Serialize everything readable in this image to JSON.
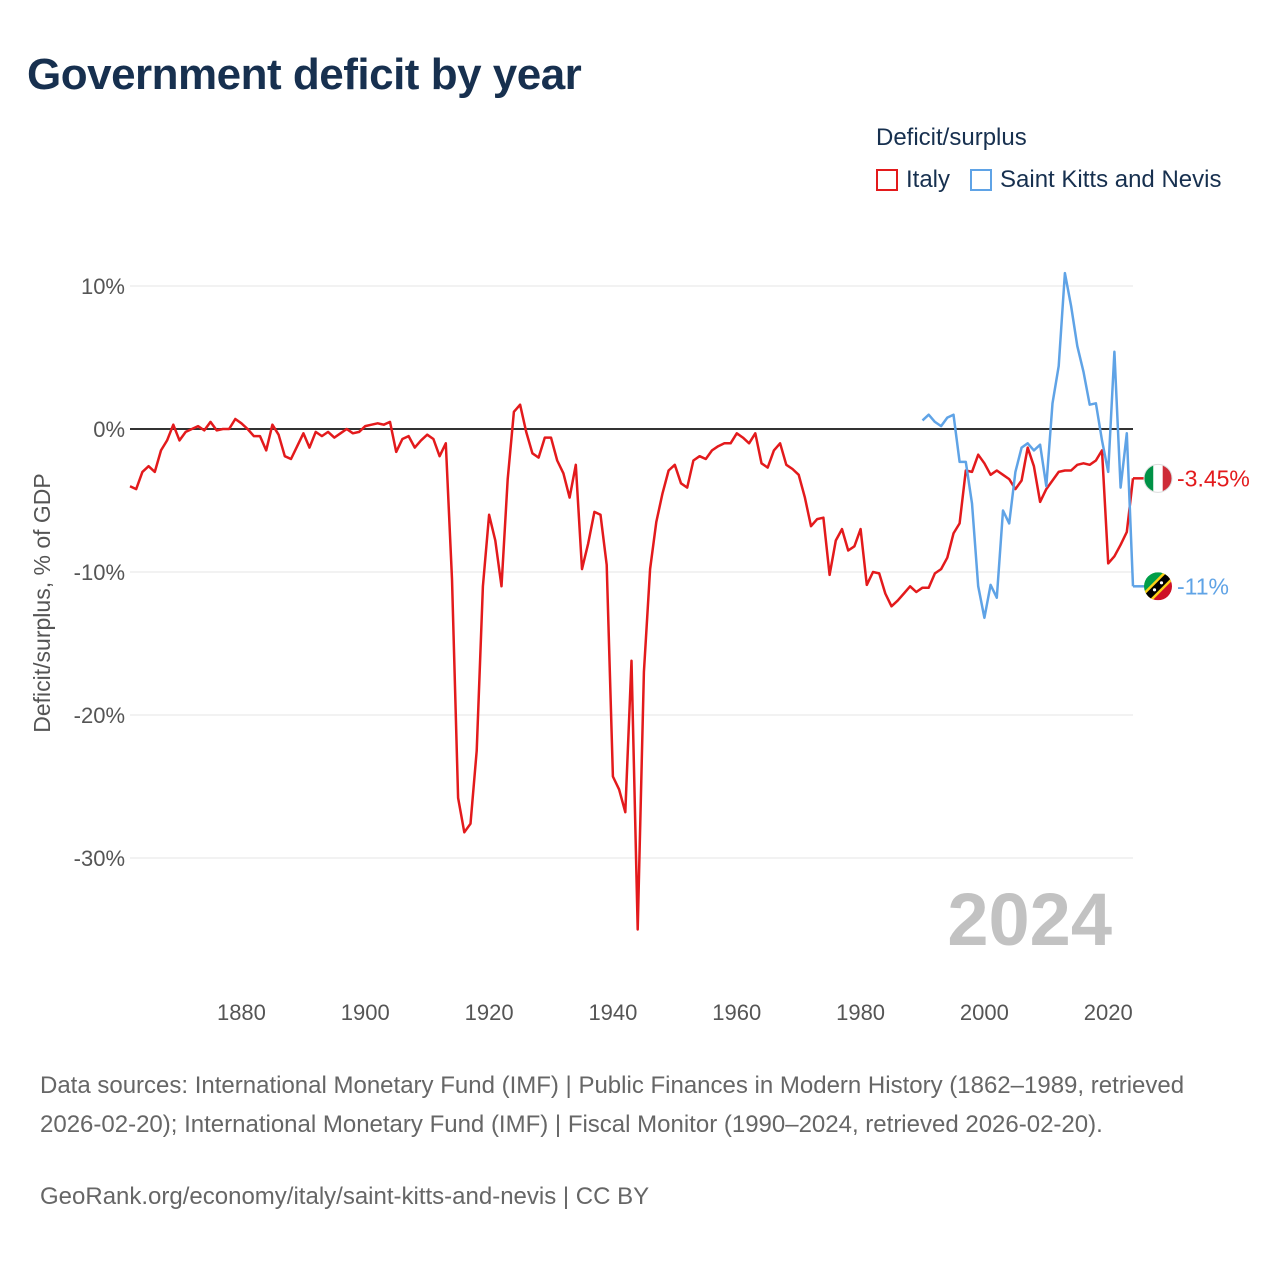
{
  "chart_data": {
    "type": "line",
    "title": "Government deficit by year",
    "ylabel": "Deficit/surplus, % of GDP",
    "xlabel": "",
    "xlim": [
      1862,
      2024
    ],
    "ylim": [
      -36,
      11.5
    ],
    "yticks": [
      10,
      0,
      -10,
      -20,
      -30
    ],
    "ytick_labels": [
      "10%",
      "0%",
      "-10%",
      "-20%",
      "-30%"
    ],
    "xticks": [
      1880,
      1900,
      1920,
      1940,
      1960,
      1980,
      2000,
      2020
    ],
    "xtick_labels": [
      "1880",
      "1900",
      "1920",
      "1940",
      "1960",
      "1980",
      "2000",
      "2020"
    ],
    "legend_title": "Deficit/surplus",
    "legend_position": "top-right",
    "year_display": "2024",
    "series": [
      {
        "name": "Italy",
        "color": "#e31a1c",
        "end_label": "-3.45%",
        "x": [
          1862,
          1863,
          1864,
          1865,
          1866,
          1867,
          1868,
          1869,
          1870,
          1871,
          1872,
          1873,
          1874,
          1875,
          1876,
          1877,
          1878,
          1879,
          1880,
          1881,
          1882,
          1883,
          1884,
          1885,
          1886,
          1887,
          1888,
          1889,
          1890,
          1891,
          1892,
          1893,
          1894,
          1895,
          1896,
          1897,
          1898,
          1899,
          1900,
          1901,
          1902,
          1903,
          1904,
          1905,
          1906,
          1907,
          1908,
          1909,
          1910,
          1911,
          1912,
          1913,
          1914,
          1915,
          1916,
          1917,
          1918,
          1919,
          1920,
          1921,
          1922,
          1923,
          1924,
          1925,
          1926,
          1927,
          1928,
          1929,
          1930,
          1931,
          1932,
          1933,
          1934,
          1935,
          1936,
          1937,
          1938,
          1939,
          1940,
          1941,
          1942,
          1943,
          1944,
          1945,
          1946,
          1947,
          1948,
          1949,
          1950,
          1951,
          1952,
          1953,
          1954,
          1955,
          1956,
          1957,
          1958,
          1959,
          1960,
          1961,
          1962,
          1963,
          1964,
          1965,
          1966,
          1967,
          1968,
          1969,
          1970,
          1971,
          1972,
          1973,
          1974,
          1975,
          1976,
          1977,
          1978,
          1979,
          1980,
          1981,
          1982,
          1983,
          1984,
          1985,
          1986,
          1987,
          1988,
          1989,
          1990,
          1991,
          1992,
          1993,
          1994,
          1995,
          1996,
          1997,
          1998,
          1999,
          2000,
          2001,
          2002,
          2003,
          2004,
          2005,
          2006,
          2007,
          2008,
          2009,
          2010,
          2011,
          2012,
          2013,
          2014,
          2015,
          2016,
          2017,
          2018,
          2019,
          2020,
          2021,
          2022,
          2023,
          2024
        ],
        "values": [
          -4.0,
          -4.2,
          -3.0,
          -2.6,
          -3.0,
          -1.5,
          -0.8,
          0.3,
          -0.8,
          -0.2,
          0.0,
          0.2,
          -0.1,
          0.5,
          -0.1,
          0.0,
          0.0,
          0.7,
          0.4,
          0.0,
          -0.5,
          -0.5,
          -1.5,
          0.3,
          -0.4,
          -1.9,
          -2.1,
          -1.2,
          -0.3,
          -1.3,
          -0.2,
          -0.5,
          -0.2,
          -0.6,
          -0.3,
          0.0,
          -0.3,
          -0.2,
          0.2,
          0.3,
          0.4,
          0.3,
          0.5,
          -1.6,
          -0.7,
          -0.5,
          -1.3,
          -0.8,
          -0.4,
          -0.7,
          -1.9,
          -1.0,
          -10.5,
          -25.8,
          -28.2,
          -27.6,
          -22.5,
          -11.0,
          -6.0,
          -7.8,
          -11.0,
          -3.5,
          1.2,
          1.7,
          -0.2,
          -1.7,
          -2.0,
          -0.6,
          -0.6,
          -2.2,
          -3.1,
          -4.8,
          -2.5,
          -9.8,
          -8.0,
          -5.8,
          -6.0,
          -9.5,
          -24.3,
          -25.2,
          -26.8,
          -16.2,
          -35.0,
          -17.0,
          -9.8,
          -6.5,
          -4.5,
          -2.9,
          -2.5,
          -3.8,
          -4.1,
          -2.2,
          -1.9,
          -2.1,
          -1.5,
          -1.2,
          -1.0,
          -1.0,
          -0.3,
          -0.6,
          -1.0,
          -0.3,
          -2.4,
          -2.7,
          -1.5,
          -1.0,
          -2.5,
          -2.8,
          -3.2,
          -4.8,
          -6.8,
          -6.3,
          -6.2,
          -10.2,
          -7.8,
          -7.0,
          -8.5,
          -8.2,
          -7.0,
          -10.9,
          -10.0,
          -10.1,
          -11.5,
          -12.4,
          -12.0,
          -11.5,
          -11.0,
          -11.4,
          -11.1,
          -11.1,
          -10.1,
          -9.8,
          -9.0,
          -7.3,
          -6.6,
          -2.9,
          -3.0,
          -1.8,
          -2.4,
          -3.2,
          -2.9,
          -3.2,
          -3.5,
          -4.2,
          -3.6,
          -1.3,
          -2.6,
          -5.1,
          -4.2,
          -3.6,
          -3.0,
          -2.9,
          -2.9,
          -2.5,
          -2.4,
          -2.5,
          -2.2,
          -1.5,
          -9.4,
          -8.9,
          -8.1,
          -7.2,
          -3.45
        ]
      },
      {
        "name": "Saint Kitts and Nevis",
        "color": "#5fa3e6",
        "end_label": "-11%",
        "x": [
          1990,
          1991,
          1992,
          1993,
          1994,
          1995,
          1996,
          1997,
          1998,
          1999,
          2000,
          2001,
          2002,
          2003,
          2004,
          2005,
          2006,
          2007,
          2008,
          2009,
          2010,
          2011,
          2012,
          2013,
          2014,
          2015,
          2016,
          2017,
          2018,
          2019,
          2020,
          2021,
          2022,
          2023,
          2024
        ],
        "values": [
          0.6,
          1.0,
          0.5,
          0.2,
          0.8,
          1.0,
          -2.3,
          -2.3,
          -5.2,
          -11.0,
          -13.2,
          -10.9,
          -11.8,
          -5.7,
          -6.6,
          -3.0,
          -1.3,
          -1.0,
          -1.5,
          -1.1,
          -4.0,
          1.8,
          4.4,
          10.9,
          8.6,
          5.8,
          4.0,
          1.7,
          1.8,
          -0.8,
          -3.0,
          5.4,
          -4.1,
          -0.3,
          -11.0
        ]
      }
    ]
  },
  "source": {
    "text": "Data sources: International Monetary Fund (IMF) | Public Finances in Modern History (1862–1989, retrieved 2026-02-20); International Monetary Fund (IMF) | Fiscal Monitor (1990–2024, retrieved 2026-02-20).",
    "credit": "GeoRank.org/economy/italy/saint-kitts-and-nevis | CC BY"
  }
}
